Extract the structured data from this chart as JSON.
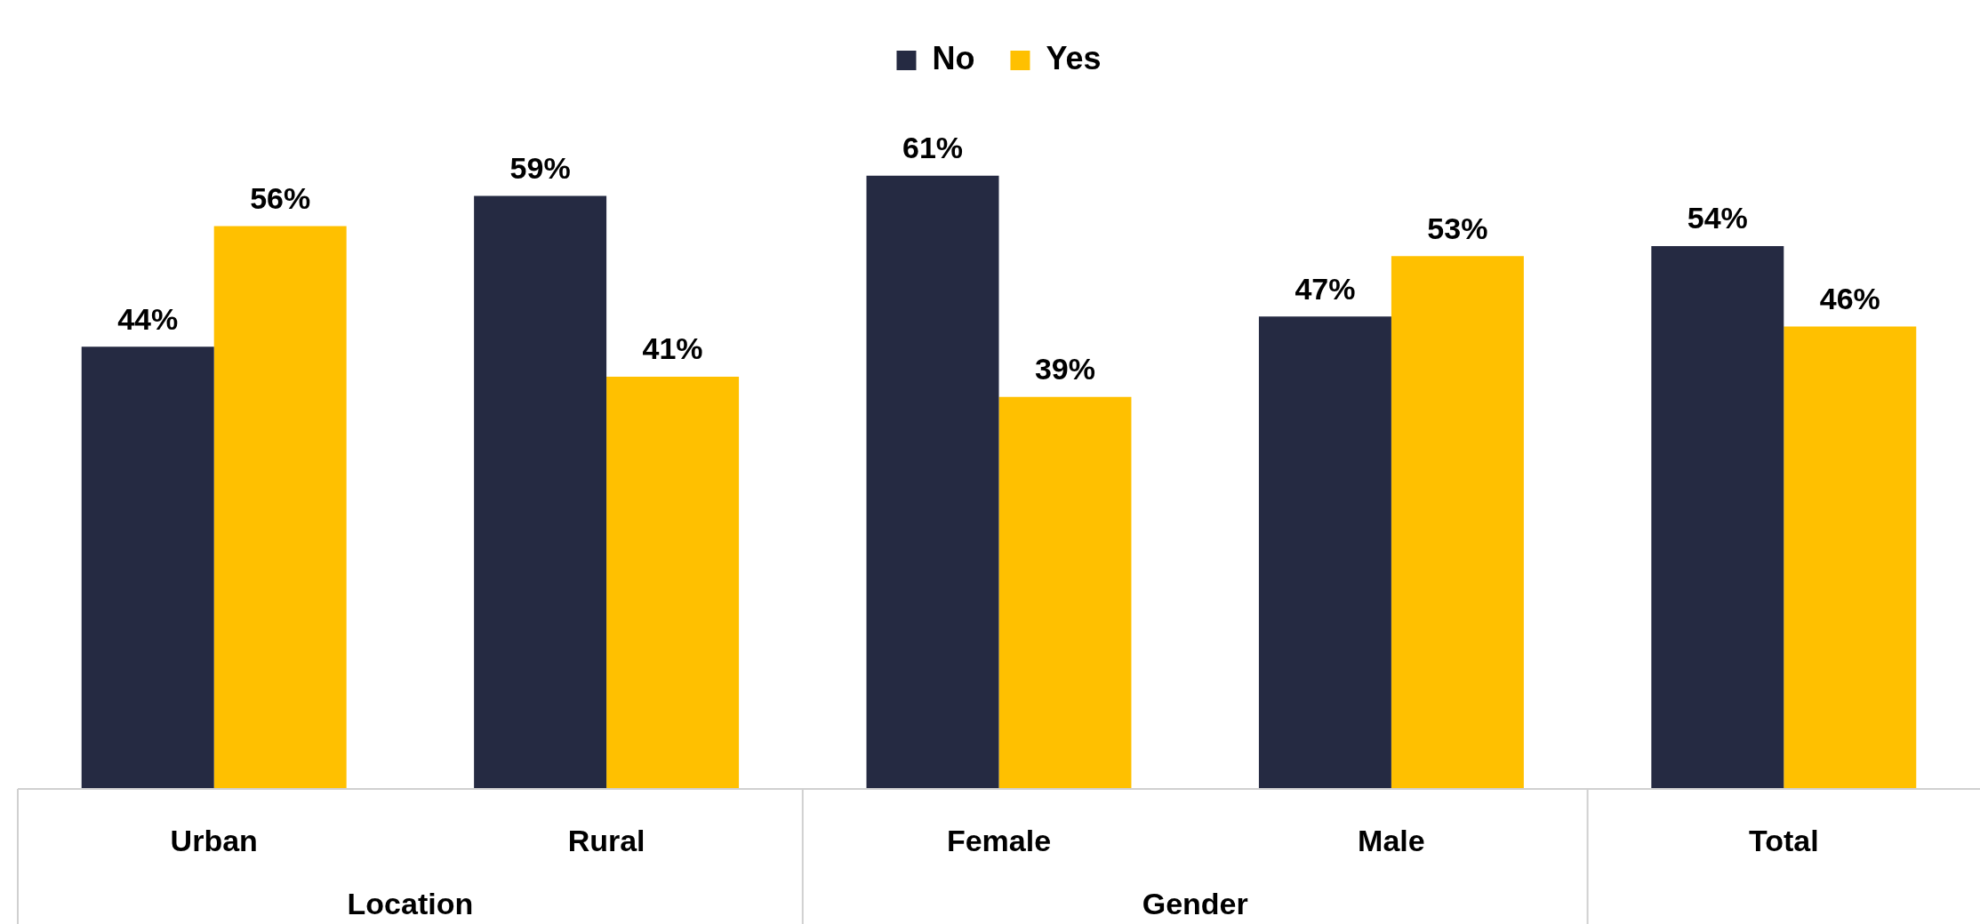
{
  "chart_data": {
    "type": "bar",
    "categories": [
      "Urban",
      "Rural",
      "Female",
      "Male",
      "Total"
    ],
    "series": [
      {
        "name": "No",
        "color": "#252a42",
        "values": [
          44,
          59,
          61,
          47,
          54
        ],
        "value_labels": [
          "44%",
          "59%",
          "61%",
          "47%",
          "54%"
        ]
      },
      {
        "name": "Yes",
        "color": "#ffc000",
        "values": [
          56,
          41,
          39,
          53,
          46
        ],
        "value_labels": [
          "56%",
          "41%",
          "39%",
          "53%",
          "46%"
        ]
      }
    ],
    "legend": "top",
    "annotations": [
      "Location",
      "Gender"
    ]
  }
}
